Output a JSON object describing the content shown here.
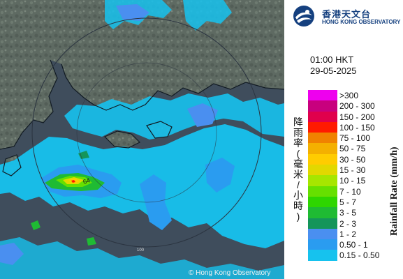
{
  "header": {
    "org_name_cn": "香港天文台",
    "org_name_en": "HONG KONG OBSERVATORY"
  },
  "timestamp": {
    "time": "01:00 HKT",
    "date": "29-05-2025"
  },
  "legend": {
    "title_cn": "降雨率(毫米/小時)",
    "title_en": "Rainfall Rate (mm/h)",
    "items": [
      {
        "label": ">300",
        "color": "#ee00ee"
      },
      {
        "label": "200 - 300",
        "color": "#c8007e"
      },
      {
        "label": "150 - 200",
        "color": "#e0004c"
      },
      {
        "label": "100 - 150",
        "color": "#ff1a00"
      },
      {
        "label": "75 - 100",
        "color": "#f08200"
      },
      {
        "label": "50 - 75",
        "color": "#f4b000"
      },
      {
        "label": "30 - 50",
        "color": "#ffcc00"
      },
      {
        "label": "15 - 30",
        "color": "#e2d800"
      },
      {
        "label": "10 - 15",
        "color": "#a6e600"
      },
      {
        "label": "7 - 10",
        "color": "#66e000"
      },
      {
        "label": "5 - 7",
        "color": "#2ed600"
      },
      {
        "label": "3 - 5",
        "color": "#1fbb33"
      },
      {
        "label": "2 - 3",
        "color": "#14955a"
      },
      {
        "label": "1 - 2",
        "color": "#4a8ff0"
      },
      {
        "label": "0.50 - 1",
        "color": "#2a9cf0"
      },
      {
        "label": "0.15 - 0.50",
        "color": "#16c2ee"
      }
    ]
  },
  "map": {
    "copyright": "© Hong Kong Observatory",
    "range_labels": [
      "64",
      "100"
    ]
  }
}
